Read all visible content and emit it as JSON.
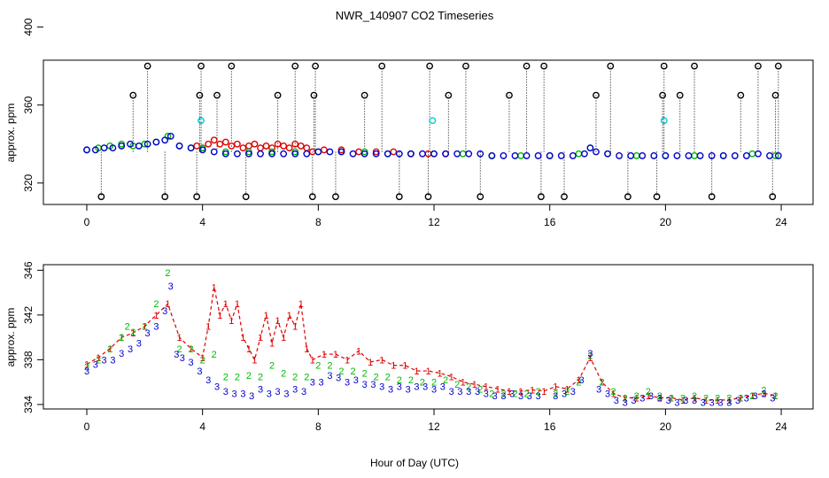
{
  "chart_data": [
    {
      "type": "scatter",
      "title": "NWR_140907  CO2 Timeseries",
      "xlabel": "",
      "ylabel": "approx. ppm",
      "xlim": [
        -1.5,
        25.1
      ],
      "ylim": [
        309,
        383
      ],
      "x_ticks": [
        "0",
        "4",
        "8",
        "12",
        "16",
        "20",
        "24"
      ],
      "y_ticks": [
        "320",
        "360",
        "400"
      ],
      "series": [
        {
          "name": "red",
          "color": "#dd0000",
          "x": [
            3.8,
            4.0,
            4.2,
            4.4,
            4.6,
            4.8,
            5.0,
            5.2,
            5.4,
            5.6,
            5.8,
            6.0,
            6.2,
            6.4,
            6.6,
            6.8,
            7.0,
            7.2,
            7.4,
            7.6,
            7.8,
            8.2,
            8.8,
            9.4,
            10.0,
            10.6,
            11.2,
            11.8,
            12.4
          ],
          "y": [
            339,
            338,
            340,
            342,
            340,
            341,
            339,
            340,
            338,
            339,
            340,
            338,
            339,
            338,
            340,
            339,
            338,
            340,
            339,
            338,
            336,
            337,
            337,
            336,
            336,
            336,
            335,
            335,
            335
          ]
        },
        {
          "name": "green",
          "color": "#00bb00",
          "x": [
            0.0,
            0.4,
            0.8,
            1.2,
            1.6,
            2.0,
            2.4,
            2.8,
            3.2,
            3.6,
            4.0,
            4.8,
            5.6,
            6.4,
            7.2,
            8.0,
            8.8,
            9.6,
            10.4,
            11.2,
            12.0,
            13.0,
            14.0,
            15.0,
            16.0,
            17.0,
            17.4,
            18.0,
            19.0,
            20.0,
            21.0,
            22.0,
            23.0,
            23.8
          ],
          "y": [
            337,
            338,
            339,
            340,
            339,
            340,
            341,
            344,
            339,
            338,
            338,
            336,
            336,
            336,
            336,
            336,
            336,
            336,
            335,
            335,
            335,
            335,
            334,
            334,
            334,
            335,
            338,
            335,
            334,
            334,
            334,
            334,
            335,
            334
          ]
        },
        {
          "name": "blue",
          "color": "#0000cc",
          "x": [
            0.0,
            0.3,
            0.6,
            0.9,
            1.2,
            1.5,
            1.8,
            2.1,
            2.4,
            2.7,
            2.9,
            3.2,
            3.6,
            4.0,
            4.4,
            4.8,
            5.2,
            5.6,
            6.0,
            6.4,
            6.8,
            7.2,
            7.6,
            8.0,
            8.4,
            8.8,
            9.2,
            9.6,
            10.0,
            10.4,
            10.8,
            11.2,
            11.6,
            12.0,
            12.4,
            12.8,
            13.2,
            13.6,
            14.0,
            14.4,
            14.8,
            15.2,
            15.6,
            16.0,
            16.4,
            16.8,
            17.2,
            17.4,
            17.6,
            18.0,
            18.4,
            18.8,
            19.2,
            19.6,
            20.0,
            20.4,
            20.8,
            21.2,
            21.6,
            22.0,
            22.4,
            22.8,
            23.2,
            23.6,
            23.9
          ],
          "y": [
            337,
            337,
            338,
            338,
            339,
            340,
            339,
            340,
            341,
            342,
            344,
            339,
            338,
            337,
            336,
            335,
            335,
            335,
            335,
            335,
            335,
            335,
            335,
            336,
            336,
            336,
            335,
            335,
            335,
            335,
            335,
            335,
            335,
            335,
            335,
            335,
            335,
            335,
            334,
            334,
            334,
            334,
            334,
            334,
            334,
            334,
            335,
            338,
            336,
            335,
            334,
            334,
            334,
            334,
            334,
            334,
            334,
            334,
            334,
            334,
            334,
            334,
            335,
            334,
            334
          ]
        },
        {
          "name": "black-flagged",
          "color": "#000000",
          "x": [
            0.5,
            1.6,
            2.1,
            2.7,
            3.8,
            3.9,
            3.95,
            4.5,
            5.0,
            5.5,
            6.6,
            7.2,
            7.8,
            7.85,
            7.9,
            8.6,
            9.6,
            10.2,
            10.8,
            11.8,
            11.85,
            12.5,
            13.1,
            13.6,
            14.6,
            15.2,
            15.7,
            15.8,
            16.5,
            17.6,
            18.1,
            18.7,
            19.7,
            19.9,
            19.95,
            20.5,
            21.0,
            21.6,
            22.6,
            23.2,
            23.7,
            23.8,
            23.9
          ],
          "y": [
            313,
            365,
            380,
            313,
            313,
            365,
            380,
            365,
            380,
            313,
            365,
            380,
            313,
            365,
            380,
            313,
            365,
            380,
            313,
            313,
            380,
            365,
            380,
            313,
            365,
            380,
            313,
            380,
            313,
            365,
            380,
            313,
            313,
            365,
            380,
            365,
            380,
            313,
            365,
            380,
            313,
            365,
            380
          ]
        },
        {
          "name": "cyan",
          "color": "#00cccc",
          "x": [
            3.95,
            11.95,
            19.95
          ],
          "y": [
            352,
            352,
            352
          ]
        }
      ]
    },
    {
      "type": "scatter",
      "title": "",
      "xlabel": "Hour of Day (UTC)",
      "ylabel": "approx. ppm",
      "xlim": [
        -1.5,
        25.1
      ],
      "ylim": [
        333.6,
        346.5
      ],
      "x_ticks": [
        "0",
        "4",
        "8",
        "12",
        "16",
        "20",
        "24"
      ],
      "y_ticks": [
        "334",
        "338",
        "342",
        "346"
      ],
      "series": [
        {
          "name": "1",
          "color": "#dd0000",
          "x": [
            0.0,
            0.4,
            0.8,
            1.2,
            1.6,
            2.0,
            2.4,
            2.8,
            3.2,
            3.6,
            4.0,
            4.2,
            4.4,
            4.6,
            4.8,
            5.0,
            5.2,
            5.4,
            5.6,
            5.8,
            6.0,
            6.2,
            6.4,
            6.6,
            6.8,
            7.0,
            7.2,
            7.4,
            7.6,
            7.8,
            8.2,
            8.6,
            9.0,
            9.4,
            9.8,
            10.2,
            10.6,
            11.0,
            11.4,
            11.8,
            12.2,
            12.6,
            13.0,
            13.4,
            13.8,
            14.2,
            14.6,
            15.0,
            15.4,
            15.8,
            16.2,
            16.6,
            17.0,
            17.4,
            17.8,
            18.2,
            18.6,
            19.0,
            19.4,
            19.8,
            20.2,
            20.6,
            21.0,
            21.4,
            21.8,
            22.2,
            22.6,
            23.0,
            23.4,
            23.8
          ],
          "y": [
            337.6,
            338.2,
            339.0,
            340.0,
            340.4,
            341.0,
            342.0,
            343.0,
            340.0,
            339.0,
            338.2,
            341.0,
            344.5,
            342.0,
            343.0,
            341.5,
            343.0,
            340.0,
            339.0,
            338.0,
            340.0,
            342.0,
            339.5,
            341.5,
            340.0,
            342.0,
            341.0,
            343.0,
            339.0,
            338.0,
            338.5,
            338.5,
            338.0,
            338.8,
            337.8,
            338.0,
            337.5,
            337.5,
            337.0,
            337.0,
            336.8,
            336.5,
            336.0,
            335.8,
            335.6,
            335.4,
            335.2,
            335.2,
            335.3,
            335.2,
            335.6,
            335.4,
            336.2,
            338.2,
            336.0,
            335.0,
            334.6,
            334.6,
            334.8,
            334.6,
            334.6,
            334.4,
            334.6,
            334.4,
            334.4,
            334.4,
            334.6,
            334.8,
            335.0,
            334.8
          ]
        },
        {
          "name": "2",
          "color": "#00bb00",
          "x": [
            0.0,
            0.4,
            0.8,
            1.2,
            1.4,
            1.6,
            2.0,
            2.4,
            2.8,
            3.2,
            3.6,
            4.0,
            4.4,
            4.8,
            5.2,
            5.6,
            6.0,
            6.4,
            6.8,
            7.2,
            7.6,
            8.0,
            8.4,
            8.8,
            9.2,
            9.6,
            10.0,
            10.4,
            10.8,
            11.2,
            11.6,
            12.0,
            12.4,
            12.8,
            13.2,
            13.6,
            14.0,
            14.4,
            14.8,
            15.2,
            15.6,
            16.2,
            16.6,
            17.0,
            17.4,
            17.8,
            18.2,
            18.6,
            19.0,
            19.4,
            19.8,
            20.2,
            20.6,
            21.0,
            21.4,
            21.8,
            22.2,
            22.6,
            23.0,
            23.4,
            23.8
          ],
          "y": [
            337.4,
            338.0,
            339.0,
            340.0,
            341.0,
            340.5,
            341.0,
            343.0,
            345.8,
            339.0,
            339.0,
            338.0,
            338.5,
            336.5,
            336.5,
            336.6,
            336.5,
            337.5,
            336.8,
            336.5,
            336.5,
            337.5,
            337.5,
            337.0,
            337.0,
            336.8,
            336.5,
            336.5,
            336.2,
            336.2,
            336.0,
            336.0,
            336.2,
            335.8,
            335.6,
            335.4,
            335.0,
            335.0,
            335.0,
            335.0,
            335.2,
            335.0,
            335.2,
            336.0,
            338.4,
            336.0,
            335.2,
            334.6,
            334.8,
            335.2,
            334.8,
            334.6,
            334.6,
            334.8,
            334.6,
            334.6,
            334.6,
            334.6,
            334.8,
            335.3,
            334.8
          ]
        },
        {
          "name": "3",
          "color": "#0000cc",
          "x": [
            0.0,
            0.3,
            0.6,
            0.9,
            1.2,
            1.5,
            1.8,
            2.1,
            2.4,
            2.7,
            2.9,
            3.1,
            3.3,
            3.6,
            3.9,
            4.2,
            4.5,
            4.8,
            5.1,
            5.4,
            5.7,
            6.0,
            6.3,
            6.6,
            6.9,
            7.2,
            7.5,
            7.8,
            8.1,
            8.4,
            8.7,
            9.0,
            9.3,
            9.6,
            9.9,
            10.2,
            10.5,
            10.8,
            11.1,
            11.4,
            11.7,
            12.0,
            12.3,
            12.6,
            12.9,
            13.2,
            13.5,
            13.8,
            14.1,
            14.4,
            14.7,
            15.0,
            15.3,
            15.6,
            16.2,
            16.5,
            16.8,
            17.1,
            17.4,
            17.7,
            18.0,
            18.3,
            18.6,
            18.9,
            19.2,
            19.5,
            19.8,
            20.1,
            20.4,
            20.7,
            21.0,
            21.3,
            21.6,
            21.9,
            22.2,
            22.5,
            22.8,
            23.1,
            23.4,
            23.7
          ],
          "y": [
            337.0,
            337.6,
            338.0,
            338.0,
            338.6,
            339.0,
            339.5,
            340.4,
            341.0,
            342.4,
            344.6,
            338.5,
            338.2,
            337.8,
            337.0,
            336.2,
            335.6,
            335.2,
            335.0,
            335.0,
            334.8,
            335.4,
            335.0,
            335.2,
            335.0,
            335.4,
            335.2,
            336.0,
            336.0,
            336.6,
            336.4,
            336.0,
            336.2,
            335.8,
            335.8,
            335.6,
            335.4,
            335.6,
            335.4,
            335.6,
            335.6,
            335.4,
            335.6,
            335.2,
            335.2,
            335.2,
            335.2,
            335.0,
            334.8,
            334.8,
            335.0,
            334.8,
            334.8,
            334.8,
            334.8,
            335.0,
            335.2,
            336.2,
            338.6,
            335.4,
            335.0,
            334.4,
            334.2,
            334.4,
            334.6,
            334.8,
            334.6,
            334.4,
            334.2,
            334.4,
            334.4,
            334.2,
            334.2,
            334.2,
            334.2,
            334.4,
            334.6,
            334.8,
            335.0,
            334.6
          ]
        }
      ]
    }
  ]
}
